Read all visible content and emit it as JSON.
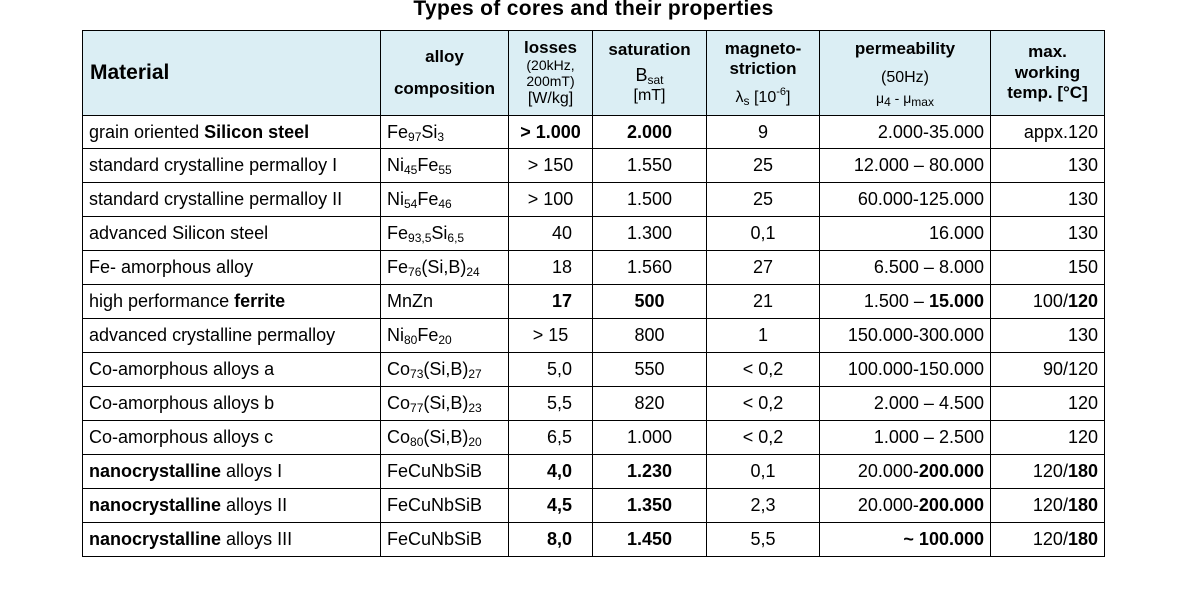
{
  "title": "Types of cores and their properties",
  "headers": {
    "material": "Material",
    "alloy1": "alloy",
    "alloy2": "composition",
    "losses": "losses",
    "losses_sub1": "(20kHz,",
    "losses_sub2": "200mT)",
    "losses_unit": "[W/kg]",
    "saturation": "saturation",
    "sat_symbol": "B",
    "sat_sub": "sat",
    "sat_unit": "[mT]",
    "magneto1": "magneto-",
    "magneto2": "striction",
    "lambda": "λ",
    "lambda_sub": "s",
    "lambda_unit_a": "[10",
    "lambda_unit_exp": "-6",
    "lambda_unit_b": "]",
    "perm": "permeability",
    "perm_freq": "(50Hz)",
    "mu": "μ",
    "mu_sub1": "4",
    "dash": " - μ",
    "mu_sub2": "max",
    "maxtemp1": "max.",
    "maxtemp2": "working",
    "maxtemp3": "temp. [°C]"
  },
  "rows": [
    {
      "mat": [
        {
          "t": "grain oriented "
        },
        {
          "t": "Silicon steel",
          "b": true
        }
      ],
      "comp": [
        {
          "t": "Fe"
        },
        {
          "s": "97"
        },
        {
          "t": "Si"
        },
        {
          "s": "3"
        }
      ],
      "loss": [
        {
          "t": "> 1.000",
          "b": true
        }
      ],
      "sat": [
        {
          "t": "2.000",
          "b": true
        }
      ],
      "mag": "9",
      "perm": [
        {
          "t": "2.000-35.000"
        }
      ],
      "temp": [
        {
          "t": "appx.120"
        }
      ]
    },
    {
      "mat": [
        {
          "t": "standard crystalline permalloy I"
        }
      ],
      "comp": [
        {
          "t": "Ni"
        },
        {
          "s": "45"
        },
        {
          "t": "Fe"
        },
        {
          "s": "55"
        }
      ],
      "loss": [
        {
          "t": "> 150"
        }
      ],
      "sat": [
        {
          "t": "1.550"
        }
      ],
      "mag": "25",
      "perm": [
        {
          "t": "12.000 – 80.000"
        }
      ],
      "temp": [
        {
          "t": "130"
        }
      ]
    },
    {
      "mat": [
        {
          "t": "standard crystalline permalloy II"
        }
      ],
      "comp": [
        {
          "t": "Ni"
        },
        {
          "s": "54"
        },
        {
          "t": "Fe"
        },
        {
          "s": "46"
        }
      ],
      "loss": [
        {
          "t": "> 100"
        }
      ],
      "sat": [
        {
          "t": "1.500"
        }
      ],
      "mag": "25",
      "perm": [
        {
          "t": "60.000-125.000"
        }
      ],
      "temp": [
        {
          "t": "130"
        }
      ]
    },
    {
      "mat": [
        {
          "t": "advanced Silicon steel"
        }
      ],
      "comp": [
        {
          "t": "Fe"
        },
        {
          "s": "93,5"
        },
        {
          "t": "Si"
        },
        {
          "s": "6,5"
        }
      ],
      "loss": [
        {
          "t": "40"
        }
      ],
      "sat": [
        {
          "t": "1.300"
        }
      ],
      "mag": "0,1",
      "perm": [
        {
          "t": "16.000"
        }
      ],
      "temp": [
        {
          "t": "130"
        }
      ]
    },
    {
      "mat": [
        {
          "t": "Fe- amorphous alloy"
        }
      ],
      "comp": [
        {
          "t": "Fe"
        },
        {
          "s": "76"
        },
        {
          "t": "(Si,B)"
        },
        {
          "s": "24"
        }
      ],
      "loss": [
        {
          "t": "18"
        }
      ],
      "sat": [
        {
          "t": "1.560"
        }
      ],
      "mag": "27",
      "perm": [
        {
          "t": "6.500 – 8.000"
        }
      ],
      "temp": [
        {
          "t": "150"
        }
      ]
    },
    {
      "mat": [
        {
          "t": "high performance "
        },
        {
          "t": "ferrite",
          "b": true
        }
      ],
      "comp": [
        {
          "t": "MnZn"
        }
      ],
      "loss": [
        {
          "t": "17",
          "b": true
        }
      ],
      "sat": [
        {
          "t": "500",
          "b": true
        }
      ],
      "mag": "21",
      "perm": [
        {
          "t": "1.500 – "
        },
        {
          "t": "15.000",
          "b": true
        }
      ],
      "temp": [
        {
          "t": "100/"
        },
        {
          "t": "120",
          "b": true
        }
      ]
    },
    {
      "mat": [
        {
          "t": "advanced crystalline permalloy"
        }
      ],
      "comp": [
        {
          "t": "Ni"
        },
        {
          "s": "80"
        },
        {
          "t": "Fe"
        },
        {
          "s": "20"
        }
      ],
      "loss": [
        {
          "t": "> 15"
        }
      ],
      "sat": [
        {
          "t": "800"
        }
      ],
      "mag": "1",
      "perm": [
        {
          "t": "150.000-300.000"
        }
      ],
      "temp": [
        {
          "t": "130"
        }
      ]
    },
    {
      "mat": [
        {
          "t": "Co-amorphous alloys a"
        }
      ],
      "comp": [
        {
          "t": "Co"
        },
        {
          "s": "73"
        },
        {
          "t": "(Si,B)"
        },
        {
          "s": "27"
        }
      ],
      "loss": [
        {
          "t": "5,0"
        }
      ],
      "sat": [
        {
          "t": "550"
        }
      ],
      "mag": "< 0,2",
      "perm": [
        {
          "t": "100.000-150.000"
        }
      ],
      "temp": [
        {
          "t": "90/120"
        }
      ]
    },
    {
      "mat": [
        {
          "t": "Co-amorphous alloys b"
        }
      ],
      "comp": [
        {
          "t": "Co"
        },
        {
          "s": "77"
        },
        {
          "t": "(Si,B)"
        },
        {
          "s": "23"
        }
      ],
      "loss": [
        {
          "t": "5,5"
        }
      ],
      "sat": [
        {
          "t": "820"
        }
      ],
      "mag": "< 0,2",
      "perm": [
        {
          "t": "2.000 – 4.500"
        }
      ],
      "temp": [
        {
          "t": "120"
        }
      ]
    },
    {
      "mat": [
        {
          "t": "Co-amorphous alloys c"
        }
      ],
      "comp": [
        {
          "t": "Co"
        },
        {
          "s": "80"
        },
        {
          "t": "(Si,B)"
        },
        {
          "s": "20"
        }
      ],
      "loss": [
        {
          "t": "6,5"
        }
      ],
      "sat": [
        {
          "t": "1.000"
        }
      ],
      "mag": "< 0,2",
      "perm": [
        {
          "t": "1.000 – 2.500"
        }
      ],
      "temp": [
        {
          "t": "120"
        }
      ]
    },
    {
      "mat": [
        {
          "t": "nanocrystalline",
          "b": true
        },
        {
          "t": " alloys I"
        }
      ],
      "comp": [
        {
          "t": "FeCuNbSiB"
        }
      ],
      "loss": [
        {
          "t": "4,0",
          "b": true
        }
      ],
      "sat": [
        {
          "t": "1.230",
          "b": true
        }
      ],
      "mag": "0,1",
      "perm": [
        {
          "t": "20.000-"
        },
        {
          "t": "200.000",
          "b": true
        }
      ],
      "temp": [
        {
          "t": "120/"
        },
        {
          "t": "180",
          "b": true
        }
      ]
    },
    {
      "mat": [
        {
          "t": "nanocrystalline",
          "b": true
        },
        {
          "t": " alloys II"
        }
      ],
      "comp": [
        {
          "t": "FeCuNbSiB"
        }
      ],
      "loss": [
        {
          "t": "4,5",
          "b": true
        }
      ],
      "sat": [
        {
          "t": "1.350",
          "b": true
        }
      ],
      "mag": "2,3",
      "perm": [
        {
          "t": "20.000-"
        },
        {
          "t": "200.000",
          "b": true
        }
      ],
      "temp": [
        {
          "t": "120/"
        },
        {
          "t": "180",
          "b": true
        }
      ]
    },
    {
      "mat": [
        {
          "t": "nanocrystalline",
          "b": true
        },
        {
          "t": " alloys III"
        }
      ],
      "comp": [
        {
          "t": "FeCuNbSiB"
        }
      ],
      "loss": [
        {
          "t": "8,0",
          "b": true
        }
      ],
      "sat": [
        {
          "t": "1.450",
          "b": true
        }
      ],
      "mag": "5,5",
      "perm": [
        {
          "t": "~ 100.000",
          "b": true
        }
      ],
      "temp": [
        {
          "t": "120/"
        },
        {
          "t": "180",
          "b": true
        }
      ]
    }
  ]
}
